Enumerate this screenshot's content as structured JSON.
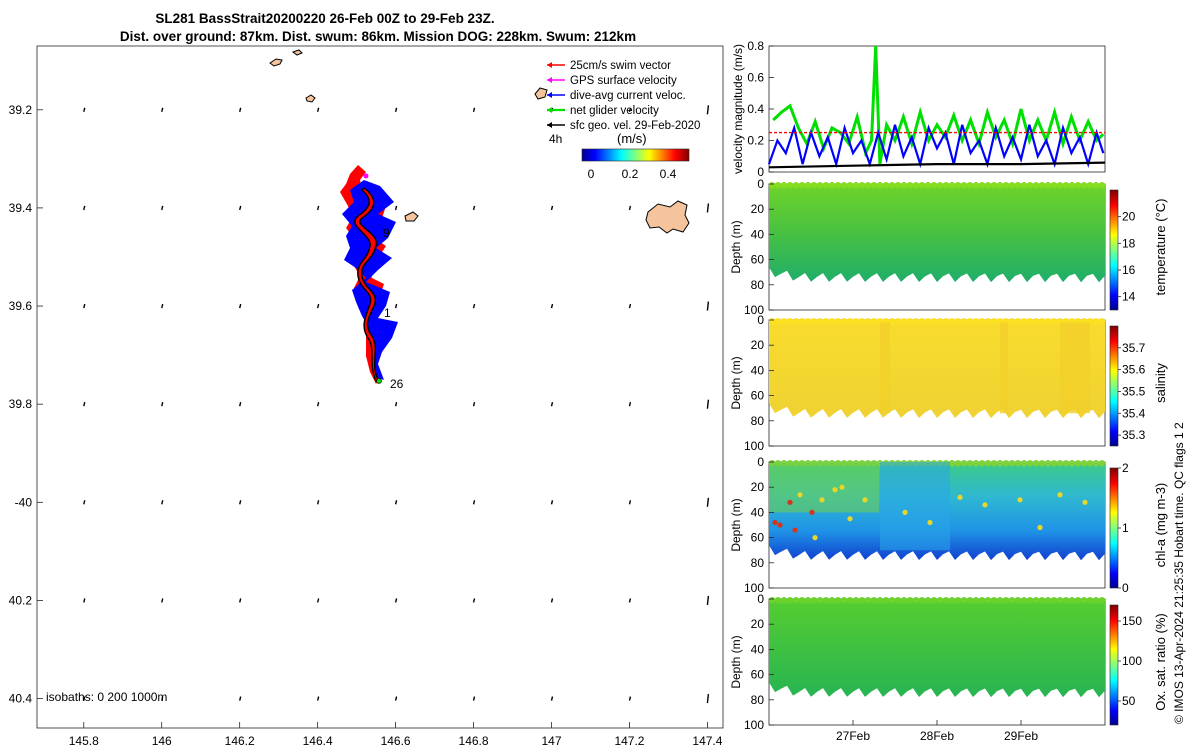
{
  "title": {
    "line1": "SL281 BassStrait20200220 26-Feb 00Z to 29-Feb 23Z.",
    "line2": "Dist. over ground: 87km. Dist. swum: 86km. Mission DOG: 228km. Swum: 212km"
  },
  "colors": {
    "swim": "#ff0000",
    "gps": "#ff00ff",
    "current": "#0000ff",
    "net": "#00e000",
    "geo": "#000000",
    "land": "#f5c49c",
    "track_red": "#ff0000",
    "track_blue": "#0000ff"
  },
  "map": {
    "lon_ticks": [
      "145.8",
      "146",
      "146.2",
      "146.4",
      "146.6",
      "146.8",
      "147",
      "147.2",
      "147.4"
    ],
    "lat_ticks": [
      "39.2",
      "39.4",
      "39.6",
      "39.8",
      "-40",
      "40.2",
      "40.4"
    ],
    "isobaths_label": "isobaths: 0   200  1000m",
    "track_labels": [
      "9",
      "1",
      "26"
    ],
    "legend": {
      "items": [
        "25cm/s swim vector",
        "GPS surface velocity",
        "dive-avg current veloc.",
        "net glider velocity",
        "sfc geo. vel. 29-Feb-2020"
      ],
      "period": "4h",
      "units": "(m/s)",
      "cbar_ticks": [
        "0",
        "0.2",
        "0.4"
      ]
    }
  },
  "chart_data": [
    {
      "type": "line",
      "title": "",
      "ylabel": "velocity magnitude (m/s)",
      "ylim": [
        0,
        0.8
      ],
      "yticks": [
        "0",
        "0.2",
        "0.4",
        "0.6",
        "0.8"
      ],
      "xlim_days": [
        26.0,
        30.0
      ],
      "series": [
        {
          "name": "net glider velocity",
          "color": "#00e000",
          "x": [
            26.05,
            26.15,
            26.25,
            26.35,
            26.45,
            26.55,
            26.65,
            26.75,
            26.85,
            26.95,
            27.05,
            27.15,
            27.22,
            27.27,
            27.32,
            27.4,
            27.5,
            27.6,
            27.7,
            27.8,
            27.9,
            28.0,
            28.1,
            28.2,
            28.3,
            28.4,
            28.5,
            28.6,
            28.7,
            28.8,
            28.9,
            29.0,
            29.1,
            29.2,
            29.3,
            29.4,
            29.5,
            29.6,
            29.7,
            29.8,
            29.9,
            29.98
          ],
          "y": [
            0.33,
            0.38,
            0.42,
            0.28,
            0.18,
            0.32,
            0.15,
            0.28,
            0.25,
            0.18,
            0.35,
            0.12,
            0.2,
            0.8,
            0.05,
            0.3,
            0.2,
            0.35,
            0.18,
            0.38,
            0.2,
            0.3,
            0.22,
            0.36,
            0.2,
            0.33,
            0.18,
            0.38,
            0.22,
            0.33,
            0.18,
            0.4,
            0.2,
            0.33,
            0.2,
            0.38,
            0.18,
            0.35,
            0.2,
            0.32,
            0.2,
            0.24
          ]
        },
        {
          "name": "dive-avg current veloc.",
          "color": "#0000ff",
          "x": [
            26.0,
            26.1,
            26.2,
            26.3,
            26.4,
            26.5,
            26.6,
            26.7,
            26.8,
            26.9,
            27.0,
            27.1,
            27.2,
            27.3,
            27.4,
            27.5,
            27.6,
            27.7,
            27.8,
            27.9,
            28.0,
            28.1,
            28.2,
            28.3,
            28.4,
            28.5,
            28.6,
            28.7,
            28.8,
            28.9,
            29.0,
            29.1,
            29.2,
            29.3,
            29.4,
            29.5,
            29.6,
            29.7,
            29.8,
            29.9,
            29.98
          ],
          "y": [
            0.05,
            0.2,
            0.12,
            0.28,
            0.05,
            0.25,
            0.1,
            0.22,
            0.05,
            0.28,
            0.12,
            0.2,
            0.05,
            0.25,
            0.08,
            0.3,
            0.1,
            0.22,
            0.05,
            0.28,
            0.15,
            0.25,
            0.05,
            0.3,
            0.12,
            0.2,
            0.05,
            0.28,
            0.1,
            0.22,
            0.08,
            0.3,
            0.1,
            0.2,
            0.05,
            0.28,
            0.12,
            0.22,
            0.05,
            0.25,
            0.12
          ]
        },
        {
          "name": "25cm/s swim vector",
          "color": "#ff0000",
          "dashed": true,
          "x": [
            26.0,
            30.0
          ],
          "y": [
            0.25,
            0.25
          ]
        },
        {
          "name": "sfc geo. vel.",
          "color": "#000000",
          "x": [
            26.0,
            27.0,
            28.0,
            29.0,
            30.0
          ],
          "y": [
            0.03,
            0.04,
            0.05,
            0.05,
            0.06
          ]
        }
      ]
    },
    {
      "type": "heatmap",
      "variable": "temperature",
      "ylabel": "Depth (m)",
      "cbar_label": "temperature (°C)",
      "yticks": [
        "0",
        "20",
        "40",
        "60",
        "80",
        "100"
      ],
      "cbar_ticks": [
        "14",
        "16",
        "18",
        "20"
      ],
      "clim": [
        13,
        22
      ],
      "typical_value": 18.3
    },
    {
      "type": "heatmap",
      "variable": "salinity",
      "ylabel": "Depth (m)",
      "cbar_label": "salinity",
      "yticks": [
        "0",
        "20",
        "40",
        "60",
        "80",
        "100"
      ],
      "cbar_ticks": [
        "35.3",
        "35.4",
        "35.5",
        "35.6",
        "35.7"
      ],
      "clim": [
        35.25,
        35.8
      ],
      "typical_value": 35.6
    },
    {
      "type": "heatmap",
      "variable": "chl-a",
      "ylabel": "Depth (m)",
      "cbar_label": "chl-a (mg m-3)",
      "yticks": [
        "0",
        "20",
        "40",
        "60",
        "80",
        "100"
      ],
      "cbar_ticks": [
        "0",
        "1",
        "2"
      ],
      "clim": [
        0,
        2
      ],
      "typical_value": 0.7
    },
    {
      "type": "heatmap",
      "variable": "oxygen saturation",
      "ylabel": "Depth (m)",
      "cbar_label": "Ox. sat. ratio (%)",
      "yticks": [
        "0",
        "20",
        "40",
        "60",
        "80",
        "100"
      ],
      "cbar_ticks": [
        "50",
        "100",
        "150"
      ],
      "clim": [
        20,
        170
      ],
      "typical_value": 105,
      "xticks": [
        "27Feb",
        "28Feb",
        "29Feb"
      ]
    }
  ],
  "side_note": "© IMOS 13-Apr-2024 21:25:35 Hobart time. QC flags 1  2"
}
